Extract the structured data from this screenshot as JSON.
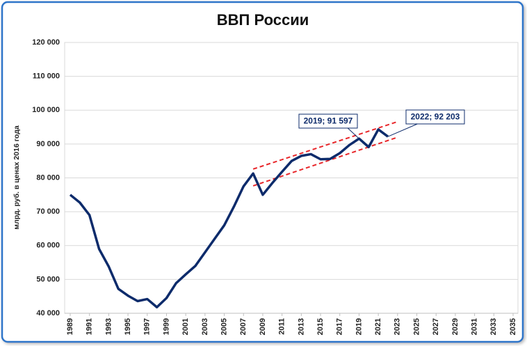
{
  "chart_data": {
    "type": "line",
    "title": "ВВП России",
    "y_label": "млрд. руб. в ценах 2016 года",
    "x": [
      1989,
      1990,
      1991,
      1992,
      1993,
      1994,
      1995,
      1996,
      1997,
      1998,
      1999,
      2000,
      2001,
      2002,
      2003,
      2004,
      2005,
      2006,
      2007,
      2008,
      2009,
      2010,
      2011,
      2012,
      2013,
      2014,
      2015,
      2016,
      2017,
      2018,
      2019,
      2020,
      2021,
      2022
    ],
    "series": [
      {
        "color": "#0d2b6b",
        "values": [
          75000,
          72700,
          69000,
          59000,
          53800,
          47200,
          45200,
          43600,
          44200,
          41800,
          44500,
          48900,
          51500,
          54000,
          58000,
          62000,
          66000,
          71500,
          77500,
          81300,
          75000,
          78500,
          81800,
          85000,
          86500,
          87000,
          85500,
          85600,
          87300,
          89700,
          91597,
          89100,
          94300,
          92203
        ]
      }
    ],
    "trend_lines": [
      {
        "color": "#e8262a",
        "x": [
          2008,
          2023
        ],
        "values": [
          82600,
          96600
        ]
      },
      {
        "color": "#e8262a",
        "x": [
          2008,
          2023
        ],
        "values": [
          77650,
          92000
        ]
      }
    ],
    "annotations": [
      {
        "text": "2019; 91 597"
      },
      {
        "text": "2022; 92 203"
      }
    ],
    "xlim": [
      1989,
      2035
    ],
    "xticks": [
      1989,
      1991,
      1993,
      1995,
      1997,
      1999,
      2001,
      2003,
      2005,
      2007,
      2009,
      2011,
      2013,
      2015,
      2017,
      2019,
      2021,
      2023,
      2025,
      2027,
      2029,
      2031,
      2033,
      2035
    ],
    "ylim": [
      40000,
      120000
    ],
    "yticks": [
      {
        "value": 40000,
        "label": "40 000"
      },
      {
        "value": 50000,
        "label": "50 000"
      },
      {
        "value": 60000,
        "label": "60 000"
      },
      {
        "value": 70000,
        "label": "70 000"
      },
      {
        "value": 80000,
        "label": "80 000"
      },
      {
        "value": 90000,
        "label": "90 000"
      },
      {
        "value": 100000,
        "label": "100 000"
      },
      {
        "value": 110000,
        "label": "110 000"
      },
      {
        "value": 120000,
        "label": "120 000"
      }
    ],
    "grid": true
  }
}
